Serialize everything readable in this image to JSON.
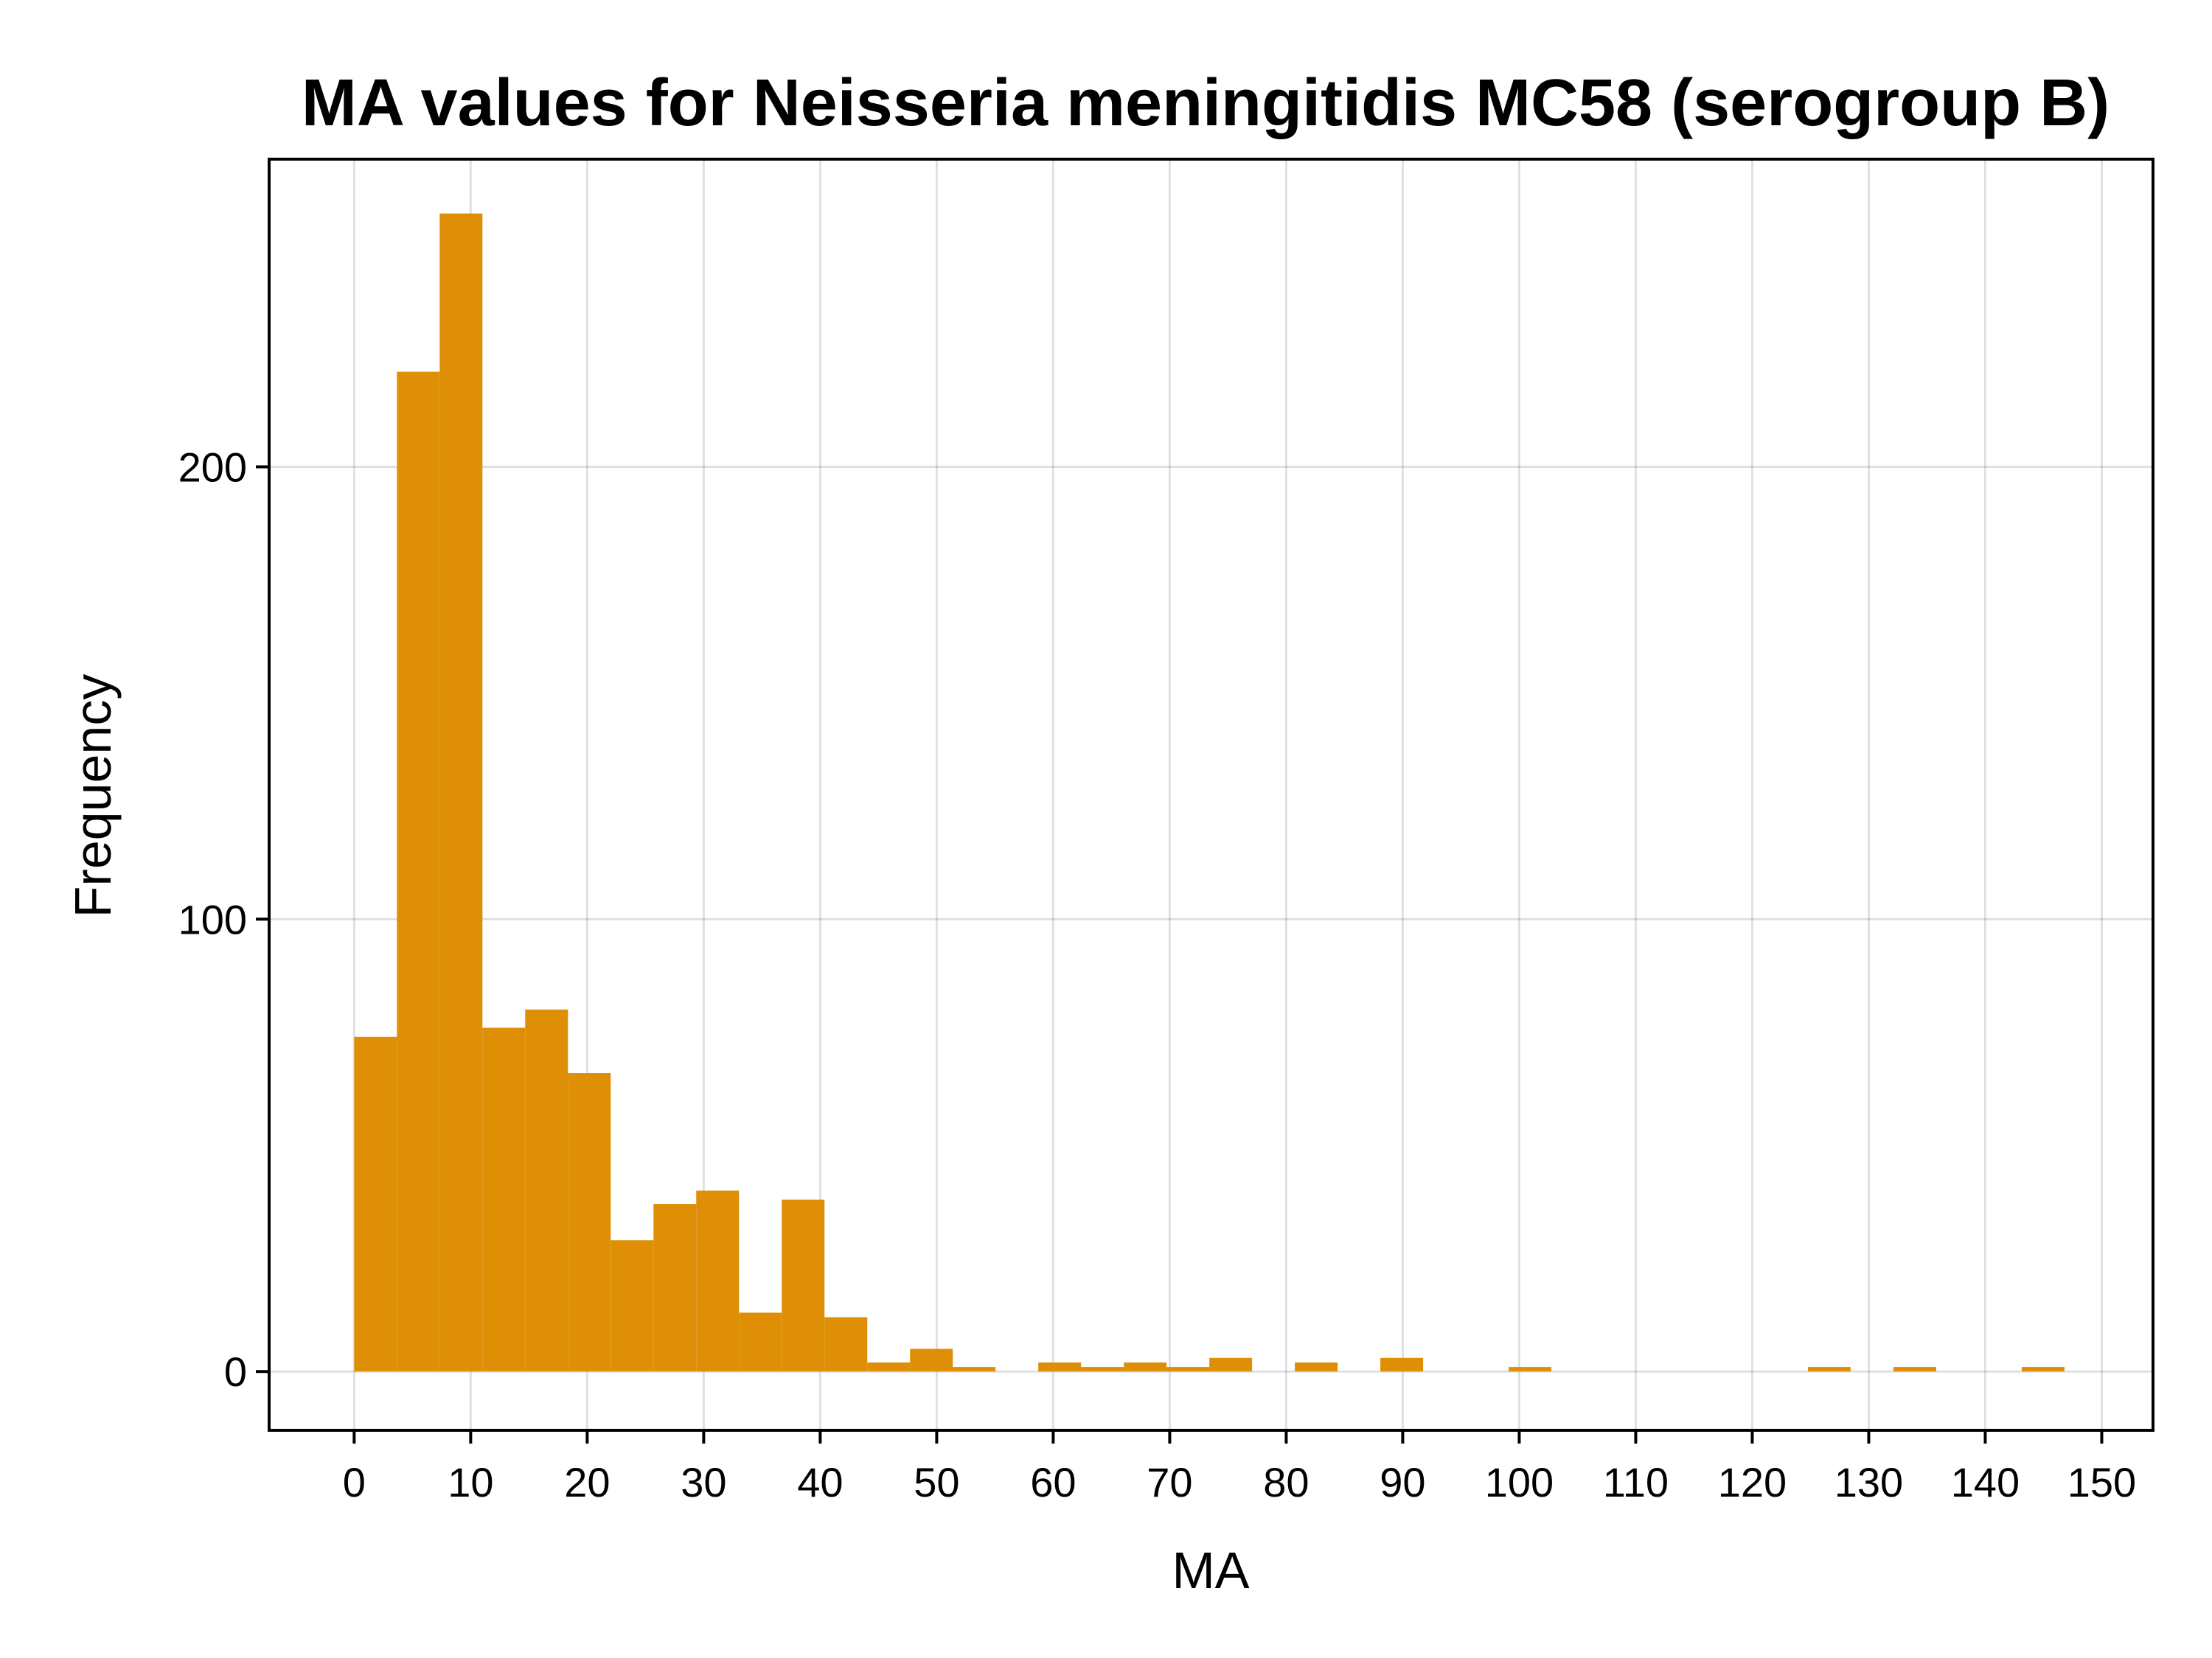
{
  "chart_data": {
    "type": "bar",
    "title": "MA values for Neisseria meningitidis MC58 (serogroup B)",
    "xlabel": "MA",
    "ylabel": "Frequency",
    "xlim": [
      -7.3,
      154.4
    ],
    "ylim": [
      -13,
      268
    ],
    "xticks": [
      "0",
      "10",
      "20",
      "30",
      "40",
      "50",
      "60",
      "70",
      "80",
      "90",
      "100",
      "110",
      "120",
      "130",
      "140",
      "150"
    ],
    "yticks": [
      "0",
      "100",
      "200"
    ],
    "bin_width": 3.67,
    "bin_start": 0,
    "values": [
      74,
      221,
      256,
      76,
      80,
      66,
      29,
      37,
      40,
      13,
      38,
      12,
      2,
      5,
      1,
      0,
      2,
      1,
      2,
      1,
      3,
      0,
      2,
      0,
      3,
      0,
      0,
      1,
      0,
      0,
      0,
      0,
      0,
      0,
      1,
      0,
      1,
      0,
      0,
      1
    ],
    "bar_color": "#DE8F05",
    "grid": true,
    "legend": "none"
  }
}
